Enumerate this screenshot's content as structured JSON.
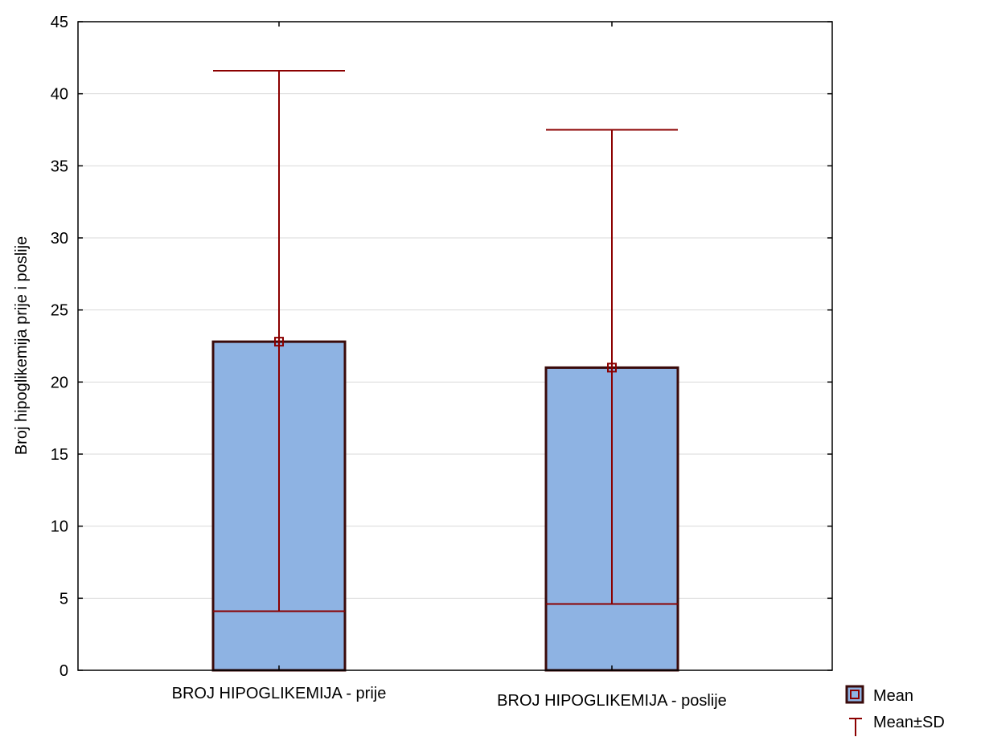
{
  "chart_data": {
    "type": "bar",
    "ylabel": "Broj hipoglikemija prije i poslije",
    "xlabel": "",
    "ylim": [
      0,
      45
    ],
    "yticks": [
      0,
      5,
      10,
      15,
      20,
      25,
      30,
      35,
      40,
      45
    ],
    "grid": true,
    "categories": [
      "BROJ HIPOGLIKEMIJA - prije",
      "BROJ HIPOGLIKEMIJA - poslije"
    ],
    "series": [
      {
        "name": "Mean",
        "values": [
          22.8,
          21.0
        ]
      },
      {
        "name": "Mean±SD",
        "lower": [
          4.1,
          4.6
        ],
        "upper": [
          41.6,
          37.5
        ]
      }
    ],
    "legend_position": "bottom-right",
    "colors": {
      "bar_fill": "#8eb3e3",
      "bar_stroke": "#3a0a0a",
      "whisker": "#8b0000",
      "grid": "#d9d9d9"
    }
  }
}
